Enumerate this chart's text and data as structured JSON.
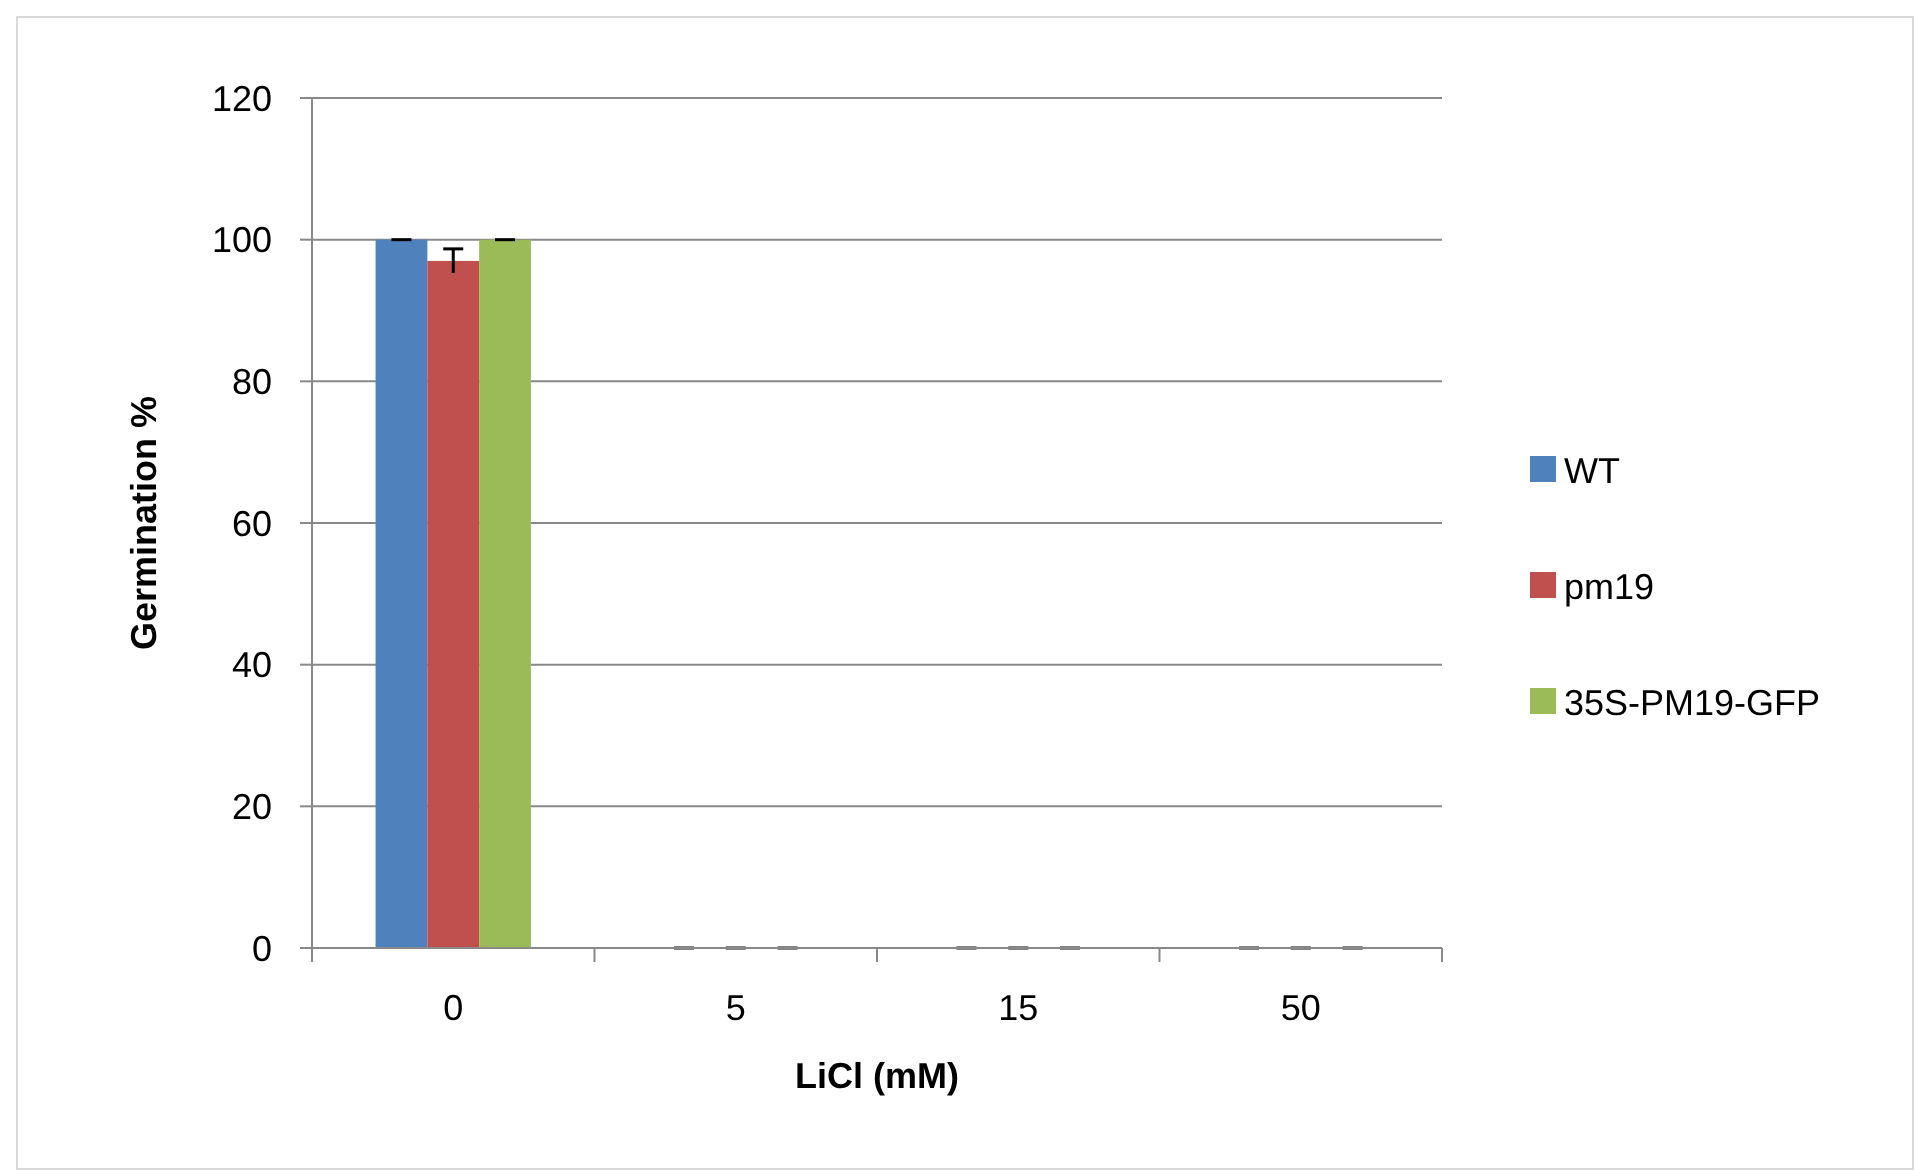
{
  "chart_data": {
    "type": "bar",
    "xlabel": "LiCl (mM)",
    "ylabel": "Germination %",
    "categories": [
      "0",
      "5",
      "15",
      "50"
    ],
    "series": [
      {
        "name": "WT",
        "color": "#4f81bd",
        "values": [
          100,
          0,
          0,
          0
        ],
        "errors": [
          0,
          0,
          0,
          0
        ]
      },
      {
        "name": "pm19",
        "color": "#c0504d",
        "values": [
          97,
          0,
          0,
          0
        ],
        "errors": [
          1.7,
          0,
          0,
          0
        ]
      },
      {
        "name": "35S-PM19-GFP",
        "color": "#9bbb59",
        "values": [
          100,
          0,
          0,
          0
        ],
        "errors": [
          0,
          0,
          0,
          0
        ]
      }
    ],
    "ylim": [
      0,
      120
    ],
    "yticks": [
      0,
      20,
      40,
      60,
      80,
      100,
      120
    ],
    "grid": "y",
    "legend": "right"
  }
}
